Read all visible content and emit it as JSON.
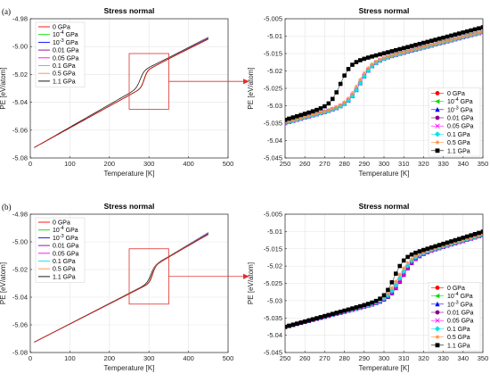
{
  "series_colors": [
    "#ff0000",
    "#00dd00",
    "#0000ff",
    "#8b008b",
    "#ff00ff",
    "#00e5ee",
    "#ff8c40",
    "#000000"
  ],
  "series_markers": [
    "circle",
    "triangle-left",
    "triangle-up",
    "circle",
    "x",
    "diamond",
    "star",
    "square"
  ],
  "zoom_box_color": "#e03030",
  "chart_data": [
    {
      "panel_label": "(a)",
      "title": "Stress normal",
      "type": "line",
      "xlabel": "Temperature [K]",
      "ylabel": "PE [eV/atom]",
      "xlim": [
        0,
        500
      ],
      "ylim": [
        -5.08,
        -4.98
      ],
      "xticks": [
        "0",
        "100",
        "200",
        "300",
        "400",
        "500"
      ],
      "yticks": [
        "-4.98",
        "-5.00",
        "-5.02",
        "-5.04",
        "-5.06",
        "-5.08"
      ],
      "legend_placement": "top-left",
      "grid": true,
      "legend": [
        "0 GPa",
        "10^-4 GPa",
        "10^-3 GPa",
        "0.01 GPa",
        "0.05 GPa",
        "0.1 GPa",
        "0.5 GPa",
        "1.1 GPa"
      ],
      "zoom_box": {
        "x": [
          250,
          350
        ],
        "y": [
          -5.045,
          -5.005
        ]
      },
      "transition_T": [
        288,
        288,
        288,
        288,
        288,
        288,
        287,
        278
      ]
    },
    {
      "panel_label": "",
      "title": "Stress normal",
      "type": "scatter",
      "xlabel": "Temperature [K]",
      "ylabel": "PE [eV/atom]",
      "xlim": [
        250,
        350
      ],
      "ylim": [
        -5.045,
        -5.005
      ],
      "xticks": [
        "250",
        "260",
        "270",
        "280",
        "290",
        "300",
        "310",
        "320",
        "330",
        "340",
        "350"
      ],
      "yticks": [
        "-5.005",
        "-5.01",
        "-5.015",
        "-5.02",
        "-5.025",
        "-5.03",
        "-5.035",
        "-5.04",
        "-5.045"
      ],
      "legend_placement": "bottom-right",
      "grid": true,
      "legend": [
        "0 GPa",
        "10^-4 GPa",
        "10^-3 GPa",
        "0.01 GPa",
        "0.05 GPa",
        "0.1 GPa",
        "0.5 GPa",
        "1.1 GPa"
      ],
      "transition_T": [
        288,
        288,
        288,
        288,
        288,
        288,
        287,
        278
      ]
    },
    {
      "panel_label": "(b)",
      "title": "Stress normal",
      "type": "line",
      "xlabel": "Temperature [K]",
      "ylabel": "PE [eV/atom]",
      "xlim": [
        0,
        500
      ],
      "ylim": [
        -5.08,
        -4.98
      ],
      "xticks": [
        "0",
        "100",
        "200",
        "300",
        "400",
        "500"
      ],
      "yticks": [
        "-4.98",
        "-5.00",
        "-5.02",
        "-5.04",
        "-5.06",
        "-5.08"
      ],
      "legend_placement": "top-left",
      "grid": true,
      "legend": [
        "0 GPa",
        "10^-4 GPa",
        "10^-3 GPa",
        "0.01 GPa",
        "0.05 GPa",
        "0.1 GPa",
        "0.5 GPa",
        "1.1 GPa"
      ],
      "zoom_box": {
        "x": [
          250,
          350
        ],
        "y": [
          -5.045,
          -5.005
        ]
      },
      "transition_T": [
        309,
        309,
        309,
        309,
        309,
        308,
        307,
        305
      ]
    },
    {
      "panel_label": "",
      "title": "Stress normal",
      "type": "scatter",
      "xlabel": "Temperature [K]",
      "ylabel": "PE [eV/atom]",
      "xlim": [
        250,
        350
      ],
      "ylim": [
        -5.045,
        -5.005
      ],
      "xticks": [
        "250",
        "260",
        "270",
        "280",
        "290",
        "300",
        "310",
        "320",
        "330",
        "340",
        "350"
      ],
      "yticks": [
        "-5.005",
        "-5.01",
        "-5.015",
        "-5.02",
        "-5.025",
        "-5.03",
        "-5.035",
        "-5.04",
        "-5.045"
      ],
      "legend_placement": "bottom-right",
      "grid": true,
      "legend": [
        "0 GPa",
        "10^-4 GPa",
        "10^-3 GPa",
        "0.01 GPa",
        "0.05 GPa",
        "0.1 GPa",
        "0.5 GPa",
        "1.1 GPa"
      ],
      "transition_T": [
        309,
        309,
        309,
        309,
        309,
        308,
        307,
        305
      ]
    }
  ]
}
